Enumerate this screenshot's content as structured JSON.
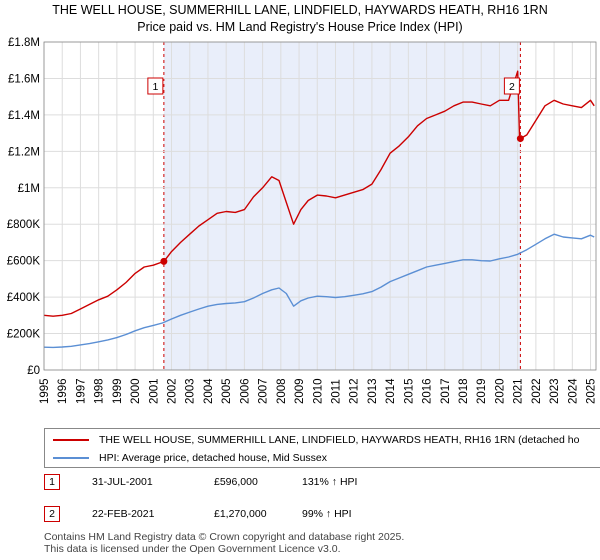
{
  "chart_data": {
    "type": "line",
    "title": "THE WELL HOUSE, SUMMERHILL LANE, LINDFIELD, HAYWARDS HEATH, RH16 1RN",
    "subtitle": "Price paid vs. HM Land Registry's House Price Index (HPI)",
    "xlim": [
      1995,
      2025.3
    ],
    "ylim": [
      0,
      1800000
    ],
    "xticks": [
      "1995",
      "1996",
      "1997",
      "1998",
      "1999",
      "2000",
      "2001",
      "2002",
      "2003",
      "2004",
      "2005",
      "2006",
      "2007",
      "2008",
      "2009",
      "2010",
      "2011",
      "2012",
      "2013",
      "2014",
      "2015",
      "2016",
      "2017",
      "2018",
      "2019",
      "2020",
      "2021",
      "2022",
      "2023",
      "2024",
      "2025"
    ],
    "yticks": [
      {
        "value": 0,
        "label": "£0"
      },
      {
        "value": 200000,
        "label": "£200K"
      },
      {
        "value": 400000,
        "label": "£400K"
      },
      {
        "value": 600000,
        "label": "£600K"
      },
      {
        "value": 800000,
        "label": "£800K"
      },
      {
        "value": 1000000,
        "label": "£1M"
      },
      {
        "value": 1200000,
        "label": "£1.2M"
      },
      {
        "value": 1400000,
        "label": "£1.4M"
      },
      {
        "value": 1600000,
        "label": "£1.6M"
      },
      {
        "value": 1800000,
        "label": "£1.8M"
      }
    ],
    "shaded_range": [
      2001.58,
      2021.15
    ],
    "series": [
      {
        "name": "THE WELL HOUSE, SUMMERHILL LANE, LINDFIELD, HAYWARDS HEATH, RH16 1RN (detached ho",
        "color": "#cc0000",
        "x": [
          1995,
          1995.5,
          1996,
          1996.5,
          1997,
          1997.5,
          1998,
          1998.5,
          1999,
          1999.5,
          2000,
          2000.5,
          2001,
          2001.58,
          2002,
          2002.5,
          2003,
          2003.5,
          2004,
          2004.5,
          2005,
          2005.5,
          2006,
          2006.5,
          2007,
          2007.5,
          2007.9,
          2008.3,
          2008.7,
          2009.1,
          2009.5,
          2010,
          2010.5,
          2011,
          2011.5,
          2012,
          2012.5,
          2013,
          2013.5,
          2014,
          2014.5,
          2015,
          2015.5,
          2016,
          2016.5,
          2017,
          2017.5,
          2018,
          2018.5,
          2019,
          2019.5,
          2020,
          2020.5,
          2021.0,
          2021.1,
          2021.15,
          2021.5,
          2022,
          2022.5,
          2023,
          2023.5,
          2024,
          2024.5,
          2025,
          2025.2
        ],
        "values": [
          300000,
          295000,
          300000,
          310000,
          335000,
          360000,
          385000,
          405000,
          440000,
          480000,
          530000,
          565000,
          575000,
          596000,
          650000,
          700000,
          745000,
          790000,
          825000,
          860000,
          870000,
          865000,
          880000,
          950000,
          1000000,
          1060000,
          1040000,
          920000,
          800000,
          880000,
          930000,
          960000,
          955000,
          945000,
          960000,
          975000,
          990000,
          1020000,
          1100000,
          1190000,
          1230000,
          1280000,
          1340000,
          1380000,
          1400000,
          1420000,
          1450000,
          1470000,
          1470000,
          1460000,
          1450000,
          1480000,
          1480000,
          1640000,
          1280000,
          1270000,
          1290000,
          1370000,
          1450000,
          1480000,
          1460000,
          1450000,
          1440000,
          1480000,
          1450000
        ]
      },
      {
        "name": "HPI: Average price, detached house, Mid Sussex",
        "color": "#5b8fd4",
        "x": [
          1995,
          1995.5,
          1996,
          1996.5,
          1997,
          1997.5,
          1998,
          1998.5,
          1999,
          1999.5,
          2000,
          2000.5,
          2001,
          2001.5,
          2002,
          2002.5,
          2003,
          2003.5,
          2004,
          2004.5,
          2005,
          2005.5,
          2006,
          2006.5,
          2007,
          2007.5,
          2007.9,
          2008.3,
          2008.7,
          2009.1,
          2009.5,
          2010,
          2010.5,
          2011,
          2011.5,
          2012,
          2012.5,
          2013,
          2013.5,
          2014,
          2014.5,
          2015,
          2015.5,
          2016,
          2016.5,
          2017,
          2017.5,
          2018,
          2018.5,
          2019,
          2019.5,
          2020,
          2020.5,
          2021,
          2021.5,
          2022,
          2022.5,
          2023,
          2023.5,
          2024,
          2024.5,
          2025,
          2025.2
        ],
        "values": [
          125000,
          124000,
          126000,
          130000,
          138000,
          145000,
          155000,
          165000,
          178000,
          195000,
          215000,
          232000,
          245000,
          258000,
          280000,
          300000,
          318000,
          335000,
          350000,
          360000,
          365000,
          368000,
          375000,
          395000,
          420000,
          440000,
          450000,
          420000,
          350000,
          380000,
          395000,
          405000,
          402000,
          398000,
          402000,
          410000,
          418000,
          430000,
          455000,
          485000,
          505000,
          525000,
          545000,
          565000,
          575000,
          585000,
          595000,
          605000,
          605000,
          600000,
          598000,
          610000,
          620000,
          635000,
          660000,
          690000,
          720000,
          745000,
          730000,
          725000,
          720000,
          740000,
          730000
        ]
      }
    ],
    "sales": [
      {
        "label": "1",
        "x": 2001.58,
        "value": 596000
      },
      {
        "label": "2",
        "x": 2021.15,
        "value": 1270000
      }
    ]
  },
  "legend": {
    "property": "THE WELL HOUSE, SUMMERHILL LANE, LINDFIELD, HAYWARDS HEATH, RH16 1RN (detached ho",
    "hpi": "HPI: Average price, detached house, Mid Sussex"
  },
  "transactions": [
    {
      "num": "1",
      "date": "31-JUL-2001",
      "price": "£596,000",
      "hpi": "131% ↑ HPI"
    },
    {
      "num": "2",
      "date": "22-FEB-2021",
      "price": "£1,270,000",
      "hpi": "99% ↑ HPI"
    }
  ],
  "footer": {
    "line1": "Contains HM Land Registry data © Crown copyright and database right 2025.",
    "line2": "This data is licensed under the Open Government Licence v3.0."
  }
}
